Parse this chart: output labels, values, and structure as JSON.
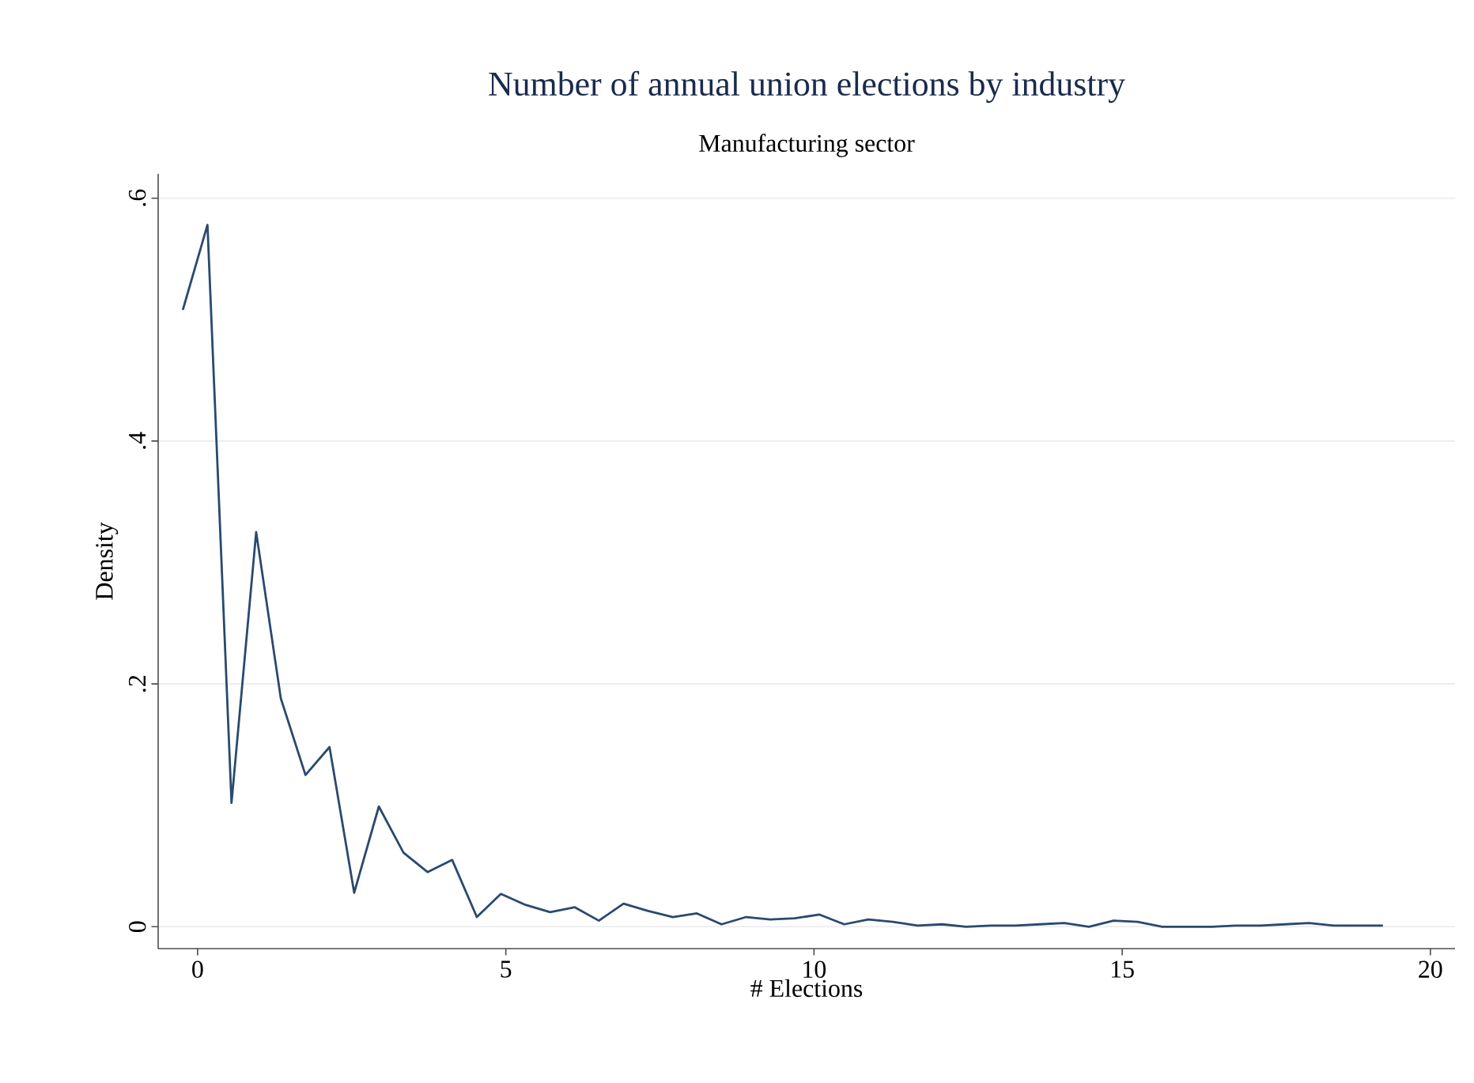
{
  "chart_data": {
    "type": "line",
    "title": "Number of annual union elections by industry",
    "subtitle": "Manufacturing sector",
    "xlabel": "# Elections",
    "ylabel": "Density",
    "x": [
      -0.24,
      0.16,
      0.55,
      0.95,
      1.35,
      1.75,
      2.14,
      2.54,
      2.94,
      3.34,
      3.73,
      4.13,
      4.53,
      4.92,
      5.32,
      5.72,
      6.12,
      6.51,
      6.91,
      7.31,
      7.71,
      8.1,
      8.5,
      8.9,
      9.29,
      9.69,
      10.09,
      10.49,
      10.88,
      11.28,
      11.68,
      12.08,
      12.47,
      12.87,
      13.27,
      13.66,
      14.06,
      14.46,
      14.86,
      15.25,
      15.65,
      16.05,
      16.45,
      16.84,
      17.24,
      17.64,
      18.03,
      18.43,
      18.83,
      19.23
    ],
    "series": [
      {
        "color": "#284a6e",
        "values": [
          0.508,
          0.578,
          0.102,
          0.325,
          0.188,
          0.125,
          0.148,
          0.028,
          0.099,
          0.061,
          0.045,
          0.055,
          0.008,
          0.027,
          0.018,
          0.012,
          0.016,
          0.005,
          0.019,
          0.013,
          0.008,
          0.011,
          0.002,
          0.008,
          0.006,
          0.007,
          0.01,
          0.002,
          0.006,
          0.004,
          0.001,
          0.002,
          0.0,
          0.001,
          0.001,
          0.002,
          0.003,
          0.0,
          0.005,
          0.004,
          0.0,
          0.0,
          0.0,
          0.001,
          0.001,
          0.002,
          0.003,
          0.001,
          0.001,
          0.001
        ]
      }
    ],
    "xlim": [
      -0.64,
      20.4
    ],
    "ylim": [
      -0.018,
      0.62
    ],
    "xticks": [
      0,
      5,
      10,
      15,
      20
    ],
    "yticks": [
      {
        "value": 0,
        "label": "0"
      },
      {
        "value": 0.2,
        "label": ".2"
      },
      {
        "value": 0.4,
        "label": ".4"
      },
      {
        "value": 0.6,
        "label": ".6"
      }
    ],
    "grid": "y",
    "marker": "none",
    "line_style": "solid"
  }
}
